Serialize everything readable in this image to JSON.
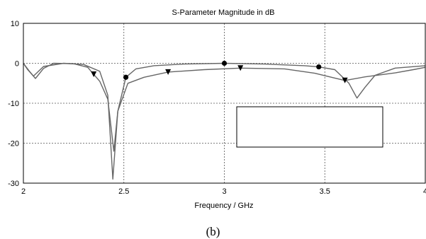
{
  "chart_data": {
    "type": "line",
    "title": "S-Parameter Magnitude in dB",
    "xlabel": "Frequency / GHz",
    "ylabel": "",
    "xlim": [
      2,
      4
    ],
    "ylim": [
      -30,
      10
    ],
    "x_ticks": [
      2,
      2.5,
      3,
      3.5,
      4
    ],
    "x_tick_labels": [
      "2",
      "2.5",
      "3",
      "3.5",
      "4"
    ],
    "y_ticks": [
      10,
      0,
      -10,
      -20,
      -30
    ],
    "y_tick_labels": [
      "10",
      "0",
      "-10",
      "-20",
      "-30"
    ],
    "grid": true,
    "legend": "lower right (blank box)",
    "series": [
      {
        "marker": "triangle-down",
        "points": [
          [
            2.0,
            0
          ],
          [
            2.03,
            -2
          ],
          [
            2.06,
            -3.8
          ],
          [
            2.1,
            -1.3
          ],
          [
            2.15,
            0
          ],
          [
            2.25,
            -0.1
          ],
          [
            2.32,
            -1.0
          ],
          [
            2.38,
            -4.5
          ],
          [
            2.42,
            -9
          ],
          [
            2.45,
            -22
          ],
          [
            2.47,
            -12
          ],
          [
            2.52,
            -5
          ],
          [
            2.6,
            -3.5
          ],
          [
            2.72,
            -2.2
          ],
          [
            2.9,
            -1.6
          ],
          [
            3.08,
            -1.2
          ],
          [
            3.3,
            -1.4
          ],
          [
            3.45,
            -2.5
          ],
          [
            3.55,
            -3.7
          ],
          [
            3.6,
            -4.3
          ],
          [
            3.7,
            -3.4
          ],
          [
            3.85,
            -2.4
          ],
          [
            3.95,
            -1.5
          ],
          [
            4.0,
            -1.0
          ]
        ],
        "marker_x": [
          2.35,
          2.72,
          3.08,
          3.6
        ]
      },
      {
        "marker": "circle",
        "points": [
          [
            2.0,
            0
          ],
          [
            2.02,
            -1.5
          ],
          [
            2.05,
            -3.2
          ],
          [
            2.1,
            -0.8
          ],
          [
            2.2,
            0
          ],
          [
            2.3,
            -0.3
          ],
          [
            2.38,
            -2
          ],
          [
            2.42,
            -8
          ],
          [
            2.445,
            -29
          ],
          [
            2.47,
            -12
          ],
          [
            2.51,
            -3.5
          ],
          [
            2.56,
            -1.4
          ],
          [
            2.65,
            -0.6
          ],
          [
            2.8,
            -0.2
          ],
          [
            3.0,
            0
          ],
          [
            3.2,
            -0.2
          ],
          [
            3.4,
            -0.6
          ],
          [
            3.47,
            -0.9
          ],
          [
            3.55,
            -1.6
          ],
          [
            3.62,
            -5
          ],
          [
            3.66,
            -8.7
          ],
          [
            3.7,
            -6
          ],
          [
            3.75,
            -3
          ],
          [
            3.85,
            -1.2
          ],
          [
            4.0,
            -0.6
          ]
        ],
        "marker_x": [
          2.51,
          3.0,
          3.47
        ]
      }
    ]
  },
  "caption": "(b)"
}
